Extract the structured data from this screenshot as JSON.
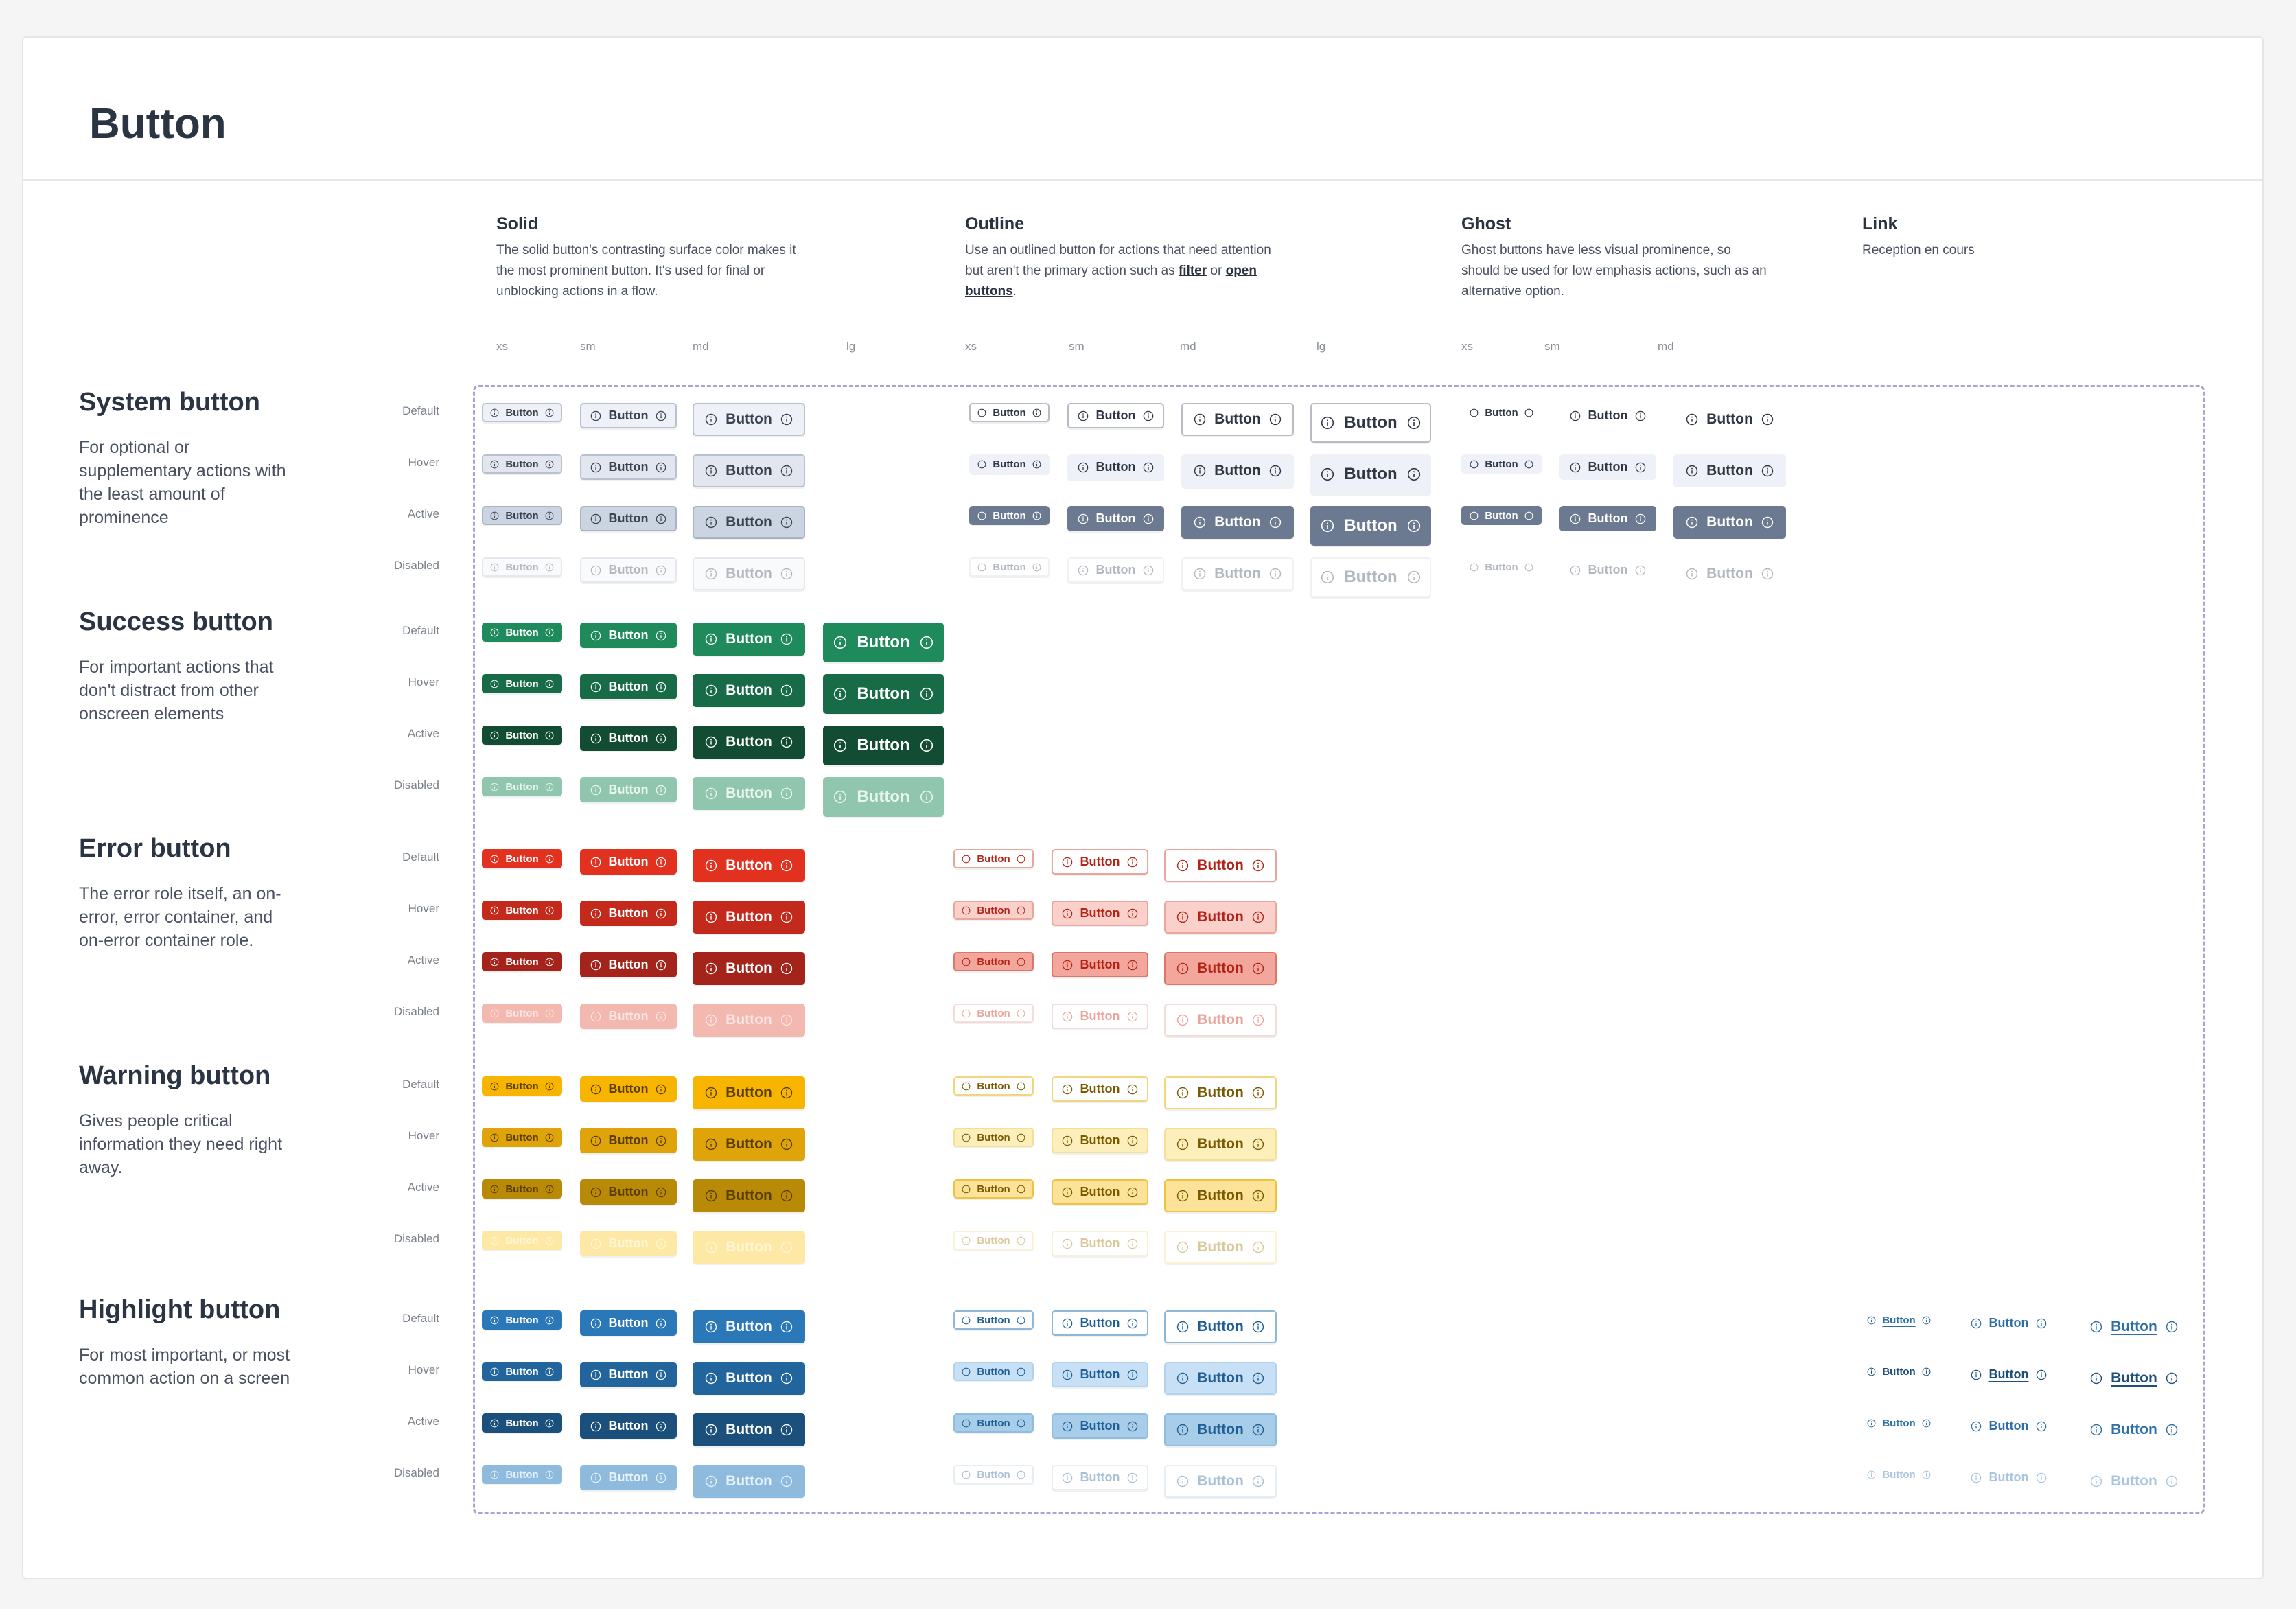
{
  "title": "Button",
  "button_label": "Button",
  "states": [
    "Default",
    "Hover",
    "Active",
    "Disabled"
  ],
  "columns": [
    {
      "key": "solid",
      "title": "Solid",
      "desc": [
        {
          "text": "The solid button's contrasting surface color makes it the most prominent button. It's used for final or unblocking actions in a flow."
        }
      ],
      "sizes": [
        "xs",
        "sm",
        "md",
        "lg"
      ]
    },
    {
      "key": "outline",
      "title": "Outline",
      "desc": [
        {
          "text": "Use an outlined button for actions that need attention but aren't the primary action such as "
        },
        {
          "text": "filter",
          "link": true
        },
        {
          "text": " or "
        },
        {
          "text": "open buttons",
          "link": true
        },
        {
          "text": "."
        }
      ],
      "sizes": [
        "xs",
        "sm",
        "md",
        "lg"
      ]
    },
    {
      "key": "ghost",
      "title": "Ghost",
      "desc": [
        {
          "text": "Ghost buttons have less visual prominence, so should be used for low emphasis actions, such as an alternative option."
        }
      ],
      "sizes": [
        "xs",
        "sm",
        "md"
      ]
    },
    {
      "key": "link",
      "title": "Link",
      "desc": [
        {
          "text": "Reception en cours"
        }
      ],
      "sizes": []
    }
  ],
  "groups": [
    {
      "key": "system",
      "title": "System button",
      "desc": "For optional or supplementary actions with the least amount of prominence",
      "variants": {
        "solid": {
          "sizes": [
            "xs",
            "sm",
            "md"
          ],
          "styles": [
            [
              "#eef1f7",
              "#b9c0cf",
              "#3b4250"
            ],
            [
              "#e2e6ee",
              "#b9c0cf",
              "#3b4250"
            ],
            [
              "#cbd5e1",
              "#aab3c3",
              "#3b4250"
            ],
            [
              "#f9fafb",
              "#e5e8ec",
              "#b3b8c0"
            ]
          ]
        },
        "outline": {
          "sizes": [
            "xs",
            "sm",
            "md",
            "lg"
          ],
          "styles": [
            [
              "#ffffff",
              "#b7bcc6",
              "#2f3644"
            ],
            [
              "#eef1f7",
              "#eef1f7",
              "#2f3644"
            ],
            [
              "#6b7a90",
              "#6b7a90",
              "#ffffff"
            ],
            [
              "#ffffff",
              "#f0f1f3",
              "#b3b8c0"
            ]
          ]
        },
        "ghost": {
          "sizes": [
            "xs",
            "sm",
            "md"
          ],
          "styles": [
            [
              "transparent",
              "transparent",
              "#2f3644"
            ],
            [
              "#eef1f7",
              "#eef1f7",
              "#2f3644"
            ],
            [
              "#6b7a90",
              "#6b7a90",
              "#ffffff"
            ],
            [
              "transparent",
              "transparent",
              "#b3b8c0"
            ]
          ]
        }
      }
    },
    {
      "key": "success",
      "title": "Success button",
      "desc": "For important actions that don't distract from other onscreen elements",
      "variants": {
        "solid": {
          "sizes": [
            "xs",
            "sm",
            "md",
            "lg"
          ],
          "styles": [
            [
              "#1f8a5b",
              "#1f8a5b",
              "#ffffff"
            ],
            [
              "#176b47",
              "#176b47",
              "#ffffff"
            ],
            [
              "#114c33",
              "#114c33",
              "#ffffff"
            ],
            [
              "#8fc6ad",
              "#8fc6ad",
              "#eaf5ef"
            ]
          ]
        }
      }
    },
    {
      "key": "error",
      "title": "Error button",
      "desc": "The error role itself, an on-error, error container, and on-error container role.",
      "variants": {
        "solid": {
          "sizes": [
            "xs",
            "sm",
            "md"
          ],
          "styles": [
            [
              "#e2311f",
              "#e2311f",
              "#ffffff"
            ],
            [
              "#c42a1c",
              "#c42a1c",
              "#ffffff"
            ],
            [
              "#a4231a",
              "#a4231a",
              "#ffffff"
            ],
            [
              "#f3b8b0",
              "#f3b8b0",
              "#fbe5e2"
            ]
          ]
        },
        "outline": {
          "sizes": [
            "xs",
            "sm",
            "md"
          ],
          "styles": [
            [
              "#ffffff",
              "#e9a59c",
              "#b42318"
            ],
            [
              "#f9d0ca",
              "#eca59b",
              "#b42318"
            ],
            [
              "#f2a69c",
              "#dc7669",
              "#b42318"
            ],
            [
              "#ffffff",
              "#f6dcd8",
              "#e9a59c"
            ]
          ]
        }
      }
    },
    {
      "key": "warning",
      "title": "Warning button",
      "desc": "Gives people critical information they need right away.",
      "variants": {
        "solid": {
          "sizes": [
            "xs",
            "sm",
            "md"
          ],
          "styles": [
            [
              "#f7b500",
              "#f7b500",
              "#5a3d00"
            ],
            [
              "#dea40a",
              "#dea40a",
              "#5a3d00"
            ],
            [
              "#b98a08",
              "#b98a08",
              "#5a3d00"
            ],
            [
              "#fde8a6",
              "#fde8a6",
              "#fff6d6"
            ]
          ]
        },
        "outline": {
          "sizes": [
            "xs",
            "sm",
            "md"
          ],
          "styles": [
            [
              "#ffffff",
              "#f2d67c",
              "#7a5a00"
            ],
            [
              "#fdefbc",
              "#f6df93",
              "#7a5a00"
            ],
            [
              "#fde39a",
              "#f0c23f",
              "#7a5a00"
            ],
            [
              "#ffffff",
              "#fbf1d3",
              "#d9c89b"
            ]
          ]
        }
      }
    },
    {
      "key": "highlight",
      "title": "Highlight button",
      "desc": "For most important, or most common action on a screen",
      "variants": {
        "solid": {
          "sizes": [
            "xs",
            "sm",
            "md"
          ],
          "styles": [
            [
              "#2a78b8",
              "#2a78b8",
              "#ffffff"
            ],
            [
              "#22649c",
              "#22649c",
              "#ffffff"
            ],
            [
              "#1b4f7c",
              "#1b4f7c",
              "#ffffff"
            ],
            [
              "#8dbadd",
              "#8dbadd",
              "#e6f1fa"
            ]
          ]
        },
        "outline": {
          "sizes": [
            "xs",
            "sm",
            "md"
          ],
          "styles": [
            [
              "#ffffff",
              "#8fb8d8",
              "#1f5f95"
            ],
            [
              "#c8e0f5",
              "#b2d2ee",
              "#1f5f95"
            ],
            [
              "#a8cde9",
              "#8fbde2",
              "#1f5f95"
            ],
            [
              "#ffffff",
              "#e5eef6",
              "#a9c0d6"
            ]
          ]
        },
        "link": {
          "sizes": [
            "xs",
            "sm",
            "md"
          ],
          "styles": [
            [
              "transparent",
              "transparent",
              "#2f6fa8"
            ],
            [
              "transparent",
              "transparent",
              "#1e4f7a"
            ],
            [
              "transparent",
              "transparent",
              "#2f6fa8"
            ],
            [
              "transparent",
              "transparent",
              "#a9c5df"
            ]
          ]
        }
      }
    }
  ]
}
